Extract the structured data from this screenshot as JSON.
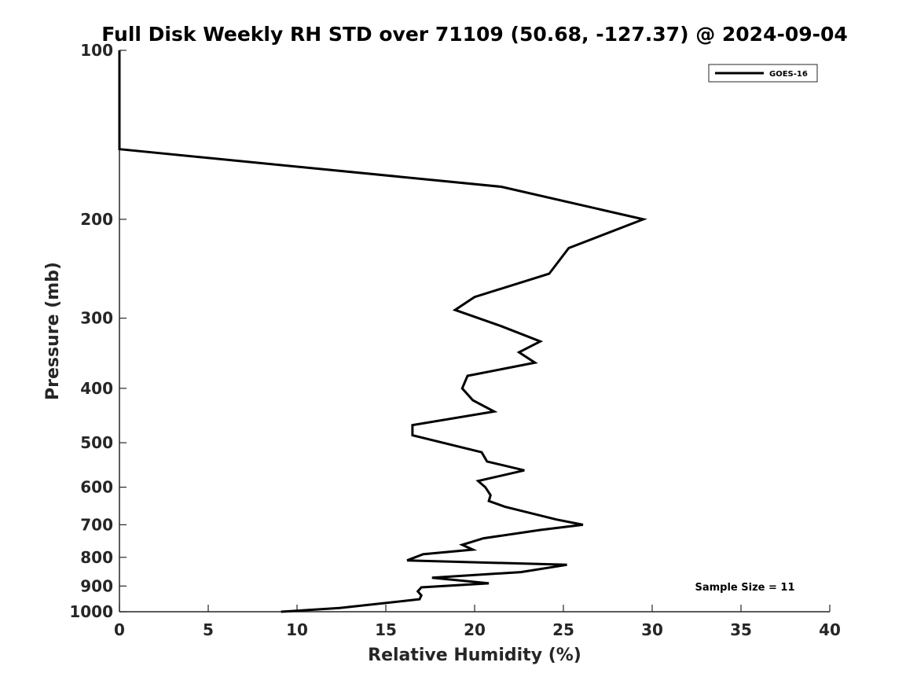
{
  "chart_data": {
    "type": "line",
    "title": "Full Disk Weekly RH STD over 71109 (50.68, -127.37) @ 2024-09-04",
    "xlabel": "Relative Humidity (%)",
    "ylabel": "Pressure (mb)",
    "xlim": [
      0,
      40
    ],
    "ylim": [
      100,
      1000
    ],
    "yscale": "log",
    "y_reversed": true,
    "xticks": [
      0,
      5,
      10,
      15,
      20,
      25,
      30,
      35,
      40
    ],
    "yticks": [
      100,
      200,
      300,
      400,
      500,
      600,
      700,
      800,
      900,
      1000
    ],
    "grid": false,
    "legend": {
      "placement": "top-right"
    },
    "annotation": "Sample Size = 11",
    "series": [
      {
        "name": "GOES-16",
        "color": "#000000",
        "points": [
          [
            0.0,
            100
          ],
          [
            0.0,
            125
          ],
          [
            0.0,
            150
          ],
          [
            21.5,
            175
          ],
          [
            29.5,
            200
          ],
          [
            25.3,
            225
          ],
          [
            24.2,
            250
          ],
          [
            20.0,
            275
          ],
          [
            18.9,
            290
          ],
          [
            21.5,
            310
          ],
          [
            23.7,
            330
          ],
          [
            22.5,
            345
          ],
          [
            23.4,
            360
          ],
          [
            19.6,
            380
          ],
          [
            19.3,
            400
          ],
          [
            19.9,
            420
          ],
          [
            21.1,
            440
          ],
          [
            16.5,
            465
          ],
          [
            16.5,
            485
          ],
          [
            20.4,
            520
          ],
          [
            20.7,
            540
          ],
          [
            22.8,
            560
          ],
          [
            20.2,
            585
          ],
          [
            20.6,
            600
          ],
          [
            20.9,
            620
          ],
          [
            20.8,
            635
          ],
          [
            21.7,
            650
          ],
          [
            24.6,
            685
          ],
          [
            26.1,
            700
          ],
          [
            23.7,
            715
          ],
          [
            20.5,
            740
          ],
          [
            19.3,
            760
          ],
          [
            19.9,
            775
          ],
          [
            17.1,
            790
          ],
          [
            16.2,
            810
          ],
          [
            25.2,
            825
          ],
          [
            22.6,
            850
          ],
          [
            17.6,
            870
          ],
          [
            20.8,
            890
          ],
          [
            17.0,
            905
          ],
          [
            16.8,
            920
          ],
          [
            17.0,
            935
          ],
          [
            16.9,
            950
          ],
          [
            12.4,
            985
          ],
          [
            9.1,
            1000
          ]
        ]
      }
    ]
  }
}
